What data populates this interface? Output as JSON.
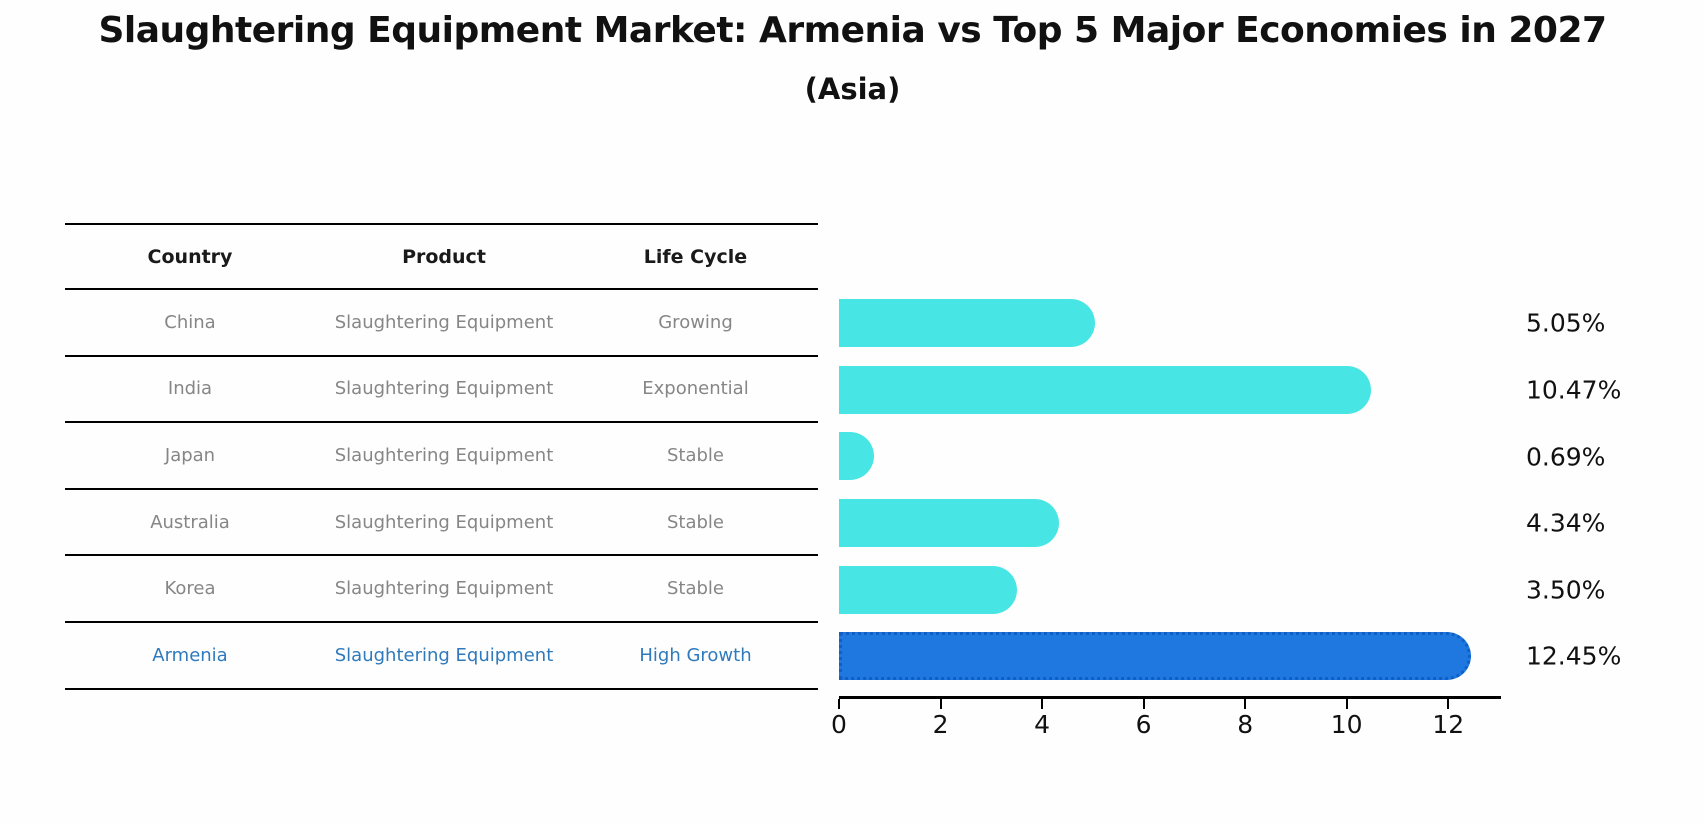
{
  "header": {
    "title": "Slaughtering Equipment Market: Armenia vs Top 5 Major Economies in 2027",
    "subtitle": "(Asia)"
  },
  "table": {
    "headers": [
      "Country",
      "Product",
      "Life Cycle"
    ],
    "rows": [
      {
        "country": "China",
        "product": "Slaughtering Equipment",
        "life_cycle": "Growing",
        "value_label": "5.05%"
      },
      {
        "country": "India",
        "product": "Slaughtering Equipment",
        "life_cycle": "Exponential",
        "value_label": "10.47%"
      },
      {
        "country": "Japan",
        "product": "Slaughtering Equipment",
        "life_cycle": "Stable",
        "value_label": "0.69%"
      },
      {
        "country": "Australia",
        "product": "Slaughtering Equipment",
        "life_cycle": "Stable",
        "value_label": "4.34%"
      },
      {
        "country": "Korea",
        "product": "Slaughtering Equipment",
        "life_cycle": "Stable",
        "value_label": "3.50%"
      },
      {
        "country": "Armenia",
        "product": "Slaughtering Equipment",
        "life_cycle": "High Growth",
        "value_label": "12.45%"
      }
    ]
  },
  "chart_data": {
    "type": "bar",
    "orientation": "horizontal",
    "title": "Slaughtering Equipment Market: Armenia vs Top 5 Major Economies in 2027 (Asia)",
    "categories": [
      "China",
      "India",
      "Japan",
      "Australia",
      "Korea",
      "Armenia"
    ],
    "values": [
      5.05,
      10.47,
      0.69,
      4.34,
      3.5,
      12.45
    ],
    "labels": [
      "5.05%",
      "10.47%",
      "0.69%",
      "4.34%",
      "3.50%",
      "12.45%"
    ],
    "xticks": [
      0,
      2,
      4,
      6,
      8,
      10,
      12
    ],
    "xlim": [
      0,
      13
    ],
    "grid": false,
    "legend": false,
    "bar_color": "#48e5e5",
    "highlight_color": "#1e78e0",
    "highlight_index": 5,
    "highlight_border_style": "dotted"
  }
}
